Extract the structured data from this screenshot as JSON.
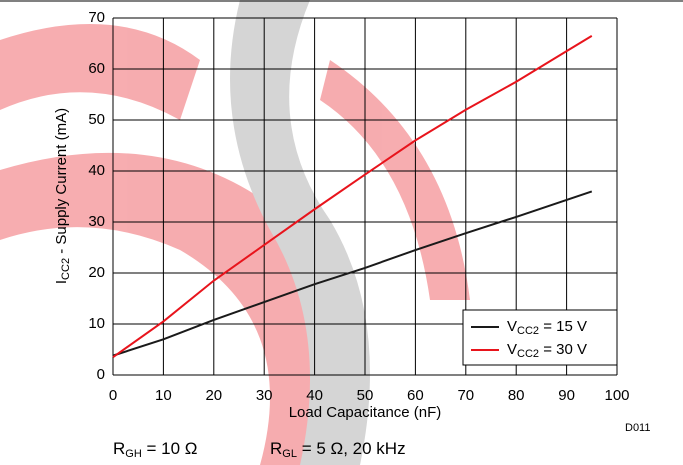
{
  "chart_data": {
    "type": "line",
    "y_label": {
      "base": "I",
      "sub": "CC2",
      "rest": " - Supply Current (mA)"
    },
    "x_label": "Load Capacitance (nF)",
    "code": "D011",
    "notes": [
      {
        "base": "R",
        "sub": "GH",
        "rest": " = 10 Ω"
      },
      {
        "base": "R",
        "sub": "GL",
        "rest": " = 5 Ω, 20 kHz"
      }
    ],
    "xlim": [
      0,
      100
    ],
    "xticks": [
      0,
      10,
      20,
      30,
      40,
      50,
      60,
      70,
      80,
      90,
      100
    ],
    "ylim": [
      0,
      70
    ],
    "yticks": [
      0,
      10,
      20,
      30,
      40,
      50,
      60,
      70
    ],
    "grid": true,
    "legend": "lower right",
    "series": [
      {
        "name": {
          "base": "V",
          "sub": "CC2",
          "rest": " = 15 V"
        },
        "color": "#1a1a1a",
        "x": [
          0,
          10,
          20,
          30,
          40,
          50,
          60,
          70,
          80,
          95
        ],
        "values": [
          3.8,
          7,
          10.8,
          14.3,
          17.8,
          21,
          24.5,
          27.8,
          31,
          36
        ]
      },
      {
        "name": {
          "base": "V",
          "sub": "CC2",
          "rest": " = 30 V"
        },
        "color": "#e8141c",
        "x": [
          0,
          10,
          20,
          30,
          40,
          50,
          60,
          70,
          80,
          90,
          95
        ],
        "values": [
          3.5,
          10.5,
          18.5,
          25.5,
          32.5,
          39.3,
          46,
          52,
          57.5,
          63.5,
          66.5
        ]
      }
    ]
  }
}
